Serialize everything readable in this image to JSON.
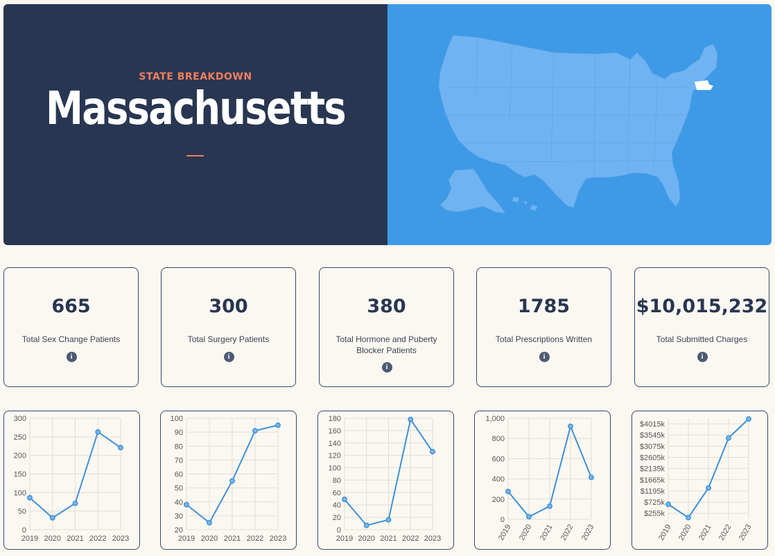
{
  "hero": {
    "eyebrow": "STATE BREAKDOWN",
    "title": "Massachusetts",
    "colors": {
      "left_bg": "#283652",
      "right_bg": "#3e9ae6",
      "accent": "#f47e5c",
      "map_fill": "#6fb3f2",
      "highlight": "#ffffff"
    }
  },
  "stats": [
    {
      "value": "665",
      "label": "Total Sex Change Patients",
      "icon": "info-icon"
    },
    {
      "value": "300",
      "label": "Total Surgery Patients",
      "icon": "info-icon"
    },
    {
      "value": "380",
      "label": "Total Hormone and Puberty Blocker Patients",
      "icon": "info-icon"
    },
    {
      "value": "1785",
      "label": "Total Prescriptions Written",
      "icon": "info-icon"
    },
    {
      "value": "$10,015,232",
      "label": "Total Submitted Charges",
      "icon": "info-icon"
    }
  ],
  "chart_data": [
    {
      "type": "line",
      "x": [
        "2019",
        "2020",
        "2021",
        "2022",
        "2023"
      ],
      "values": [
        86,
        32,
        71,
        263,
        221
      ],
      "ylim": [
        0,
        300
      ],
      "yticks": [
        "0",
        "50",
        "100",
        "150",
        "200",
        "250",
        "300"
      ],
      "rotate_x": false,
      "color": "#3e8fd8"
    },
    {
      "type": "line",
      "x": [
        "2019",
        "2020",
        "2021",
        "2022",
        "2023"
      ],
      "values": [
        38,
        25,
        55,
        91,
        95
      ],
      "ylim": [
        20,
        100
      ],
      "yticks": [
        "20",
        "30",
        "40",
        "50",
        "60",
        "70",
        "80",
        "90",
        "100"
      ],
      "rotate_x": false,
      "color": "#3e8fd8"
    },
    {
      "type": "line",
      "x": [
        "2019",
        "2020",
        "2021",
        "2022",
        "2023"
      ],
      "values": [
        49,
        7,
        16,
        178,
        126
      ],
      "ylim": [
        0,
        180
      ],
      "yticks": [
        "0",
        "20",
        "40",
        "60",
        "80",
        "100",
        "120",
        "140",
        "160",
        "180"
      ],
      "rotate_x": false,
      "color": "#3e8fd8"
    },
    {
      "type": "line",
      "x": [
        "2019",
        "2020",
        "2021",
        "2022",
        "2023"
      ],
      "values": [
        275,
        25,
        130,
        920,
        415
      ],
      "ylim": [
        0,
        1000
      ],
      "yticks": [
        "0",
        "200",
        "400",
        "600",
        "800",
        "1,000"
      ],
      "rotate_x": true,
      "color": "#3e8fd8"
    },
    {
      "type": "line",
      "x": [
        "2019",
        "2020",
        "2021",
        "2022",
        "2023"
      ],
      "values": [
        630,
        70,
        1320,
        3420,
        4220
      ],
      "ylim": [
        0,
        4250
      ],
      "yticks": [
        "$255k",
        "$725k",
        "$1195k",
        "$1665k",
        "$2135k",
        "$2605k",
        "$3075k",
        "$3545k",
        "$4015k"
      ],
      "ytick_values": [
        255,
        725,
        1195,
        1665,
        2135,
        2605,
        3075,
        3545,
        4015
      ],
      "rotate_x": true,
      "color": "#3e8fd8"
    }
  ]
}
